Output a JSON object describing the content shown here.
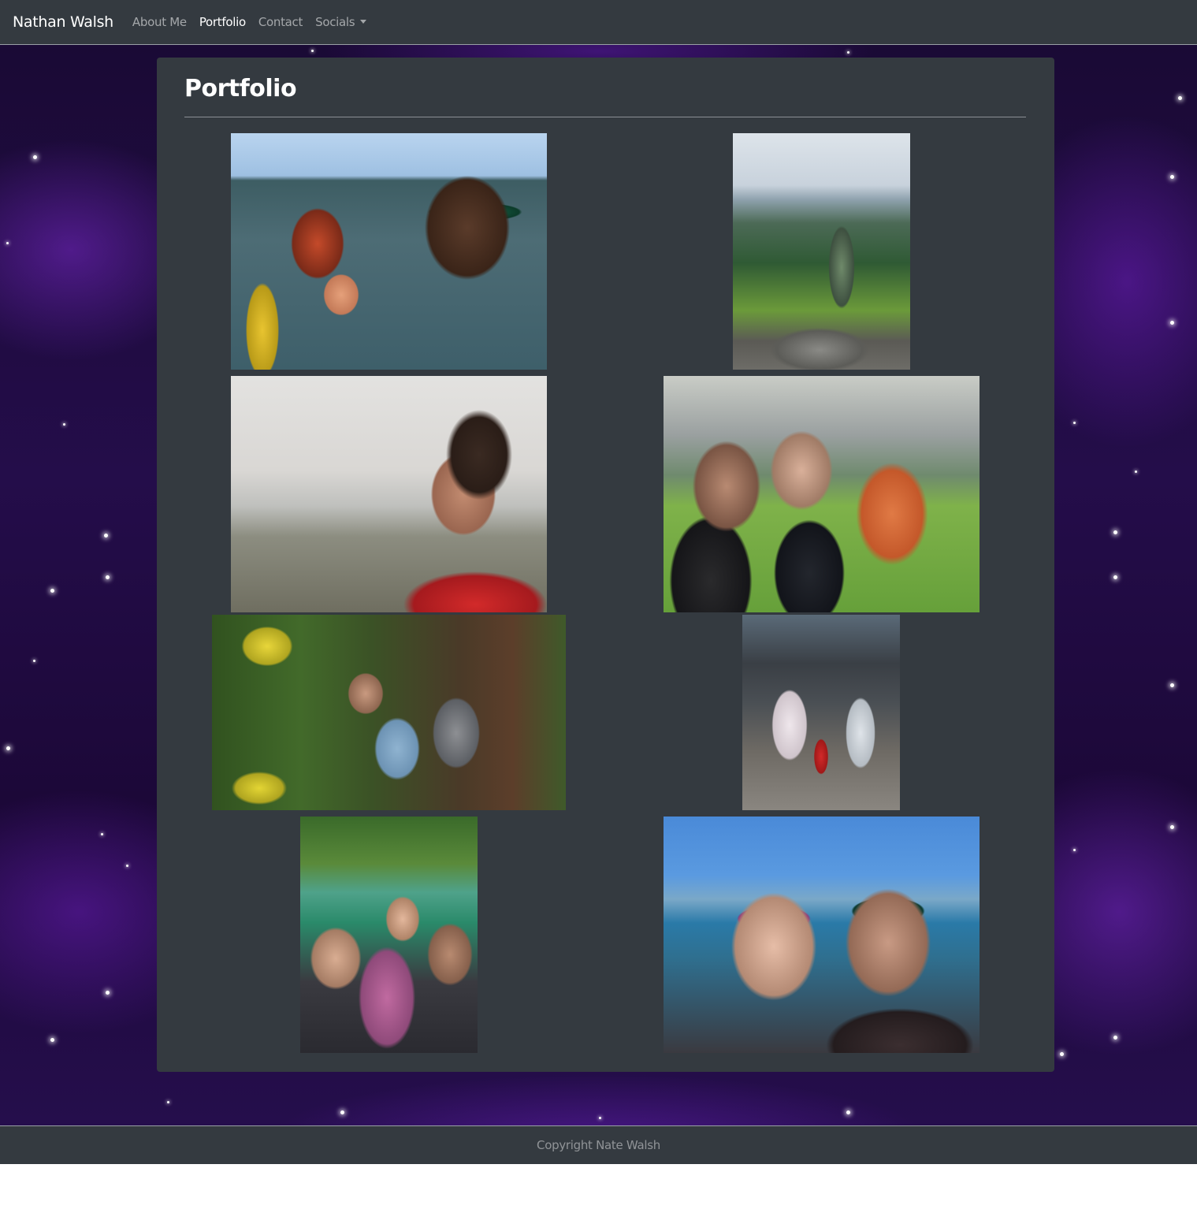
{
  "navbar": {
    "brand": "Nathan Walsh",
    "links": [
      {
        "label": "About Me",
        "active": false
      },
      {
        "label": "Portfolio",
        "active": true
      },
      {
        "label": "Contact",
        "active": false
      },
      {
        "label": "Socials",
        "active": false,
        "dropdown": true
      }
    ]
  },
  "main": {
    "title": "Portfolio",
    "photos": [
      {
        "subject": "kayak family selfie"
      },
      {
        "subject": "mountain hike"
      },
      {
        "subject": "beach portrait with sunglasses"
      },
      {
        "subject": "baseball stadium selfie"
      },
      {
        "subject": "family in garden"
      },
      {
        "subject": "family by statue"
      },
      {
        "subject": "family waterfall selfie"
      },
      {
        "subject": "couple boat selfie"
      }
    ]
  },
  "footer": {
    "text": "Copyright Nate Walsh"
  },
  "colors": {
    "navbar_bg": "#343a40",
    "card_bg": "#343a40",
    "galaxy_purple": "#4b1a8c"
  }
}
